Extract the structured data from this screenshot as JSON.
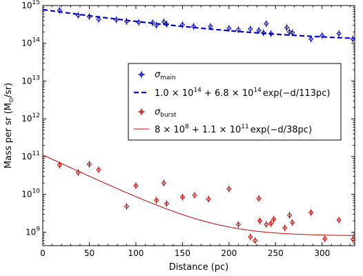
{
  "chart_data": {
    "type": "scatter",
    "xlabel": "Distance (pc)",
    "ylabel": "Mass per sr (M",
    "ylabel_sub": "⊙",
    "ylabel_end": "/sr)",
    "xlim": [
      0,
      335
    ],
    "ylim": [
      440000000.0,
      1000000000000000.0
    ],
    "y_scale": "log",
    "x_ticks": [
      0,
      50,
      100,
      150,
      200,
      250,
      300
    ],
    "y_ticks": [
      1000000000.0,
      10000000000.0,
      100000000000.0,
      1000000000000.0,
      10000000000000.0,
      100000000000000.0,
      1000000000000000.0
    ],
    "y_tick_labels": [
      {
        "base": "10",
        "exp": "9"
      },
      {
        "base": "10",
        "exp": "10"
      },
      {
        "base": "10",
        "exp": "11"
      },
      {
        "base": "10",
        "exp": "12"
      },
      {
        "base": "10",
        "exp": "13"
      },
      {
        "base": "10",
        "exp": "14"
      },
      {
        "base": "10",
        "exp": "15"
      }
    ],
    "legend_position": "center-right",
    "series": [
      {
        "name": "σ",
        "name_sub": "main",
        "color": "#0000cc",
        "marker": "diamond",
        "points": [
          [
            18,
            750000000000000.0
          ],
          [
            38,
            550000000000000.0
          ],
          [
            50,
            510000000000000.0
          ],
          [
            60,
            430000000000000.0
          ],
          [
            79,
            420000000000000.0
          ],
          [
            90,
            380000000000000.0
          ],
          [
            103,
            360000000000000.0
          ],
          [
            118,
            350000000000000.0
          ],
          [
            122,
            300000000000000.0
          ],
          [
            130,
            370000000000000.0
          ],
          [
            133,
            320000000000000.0
          ],
          [
            150,
            310000000000000.0
          ],
          [
            162,
            280000000000000.0
          ],
          [
            180,
            280000000000000.0
          ],
          [
            200,
            250000000000000.0
          ],
          [
            210,
            230000000000000.0
          ],
          [
            223,
            240000000000000.0
          ],
          [
            232,
            220000000000000.0
          ],
          [
            237,
            190000000000000.0
          ],
          [
            240,
            330000000000000.0
          ],
          [
            245,
            180000000000000.0
          ],
          [
            262,
            260000000000000.0
          ],
          [
            265,
            200000000000000.0
          ],
          [
            268,
            190000000000000.0
          ],
          [
            288,
            130000000000000.0
          ],
          [
            300,
            160000000000000.0
          ],
          [
            318,
            180000000000000.0
          ],
          [
            333,
            130000000000000.0
          ]
        ],
        "fit_label": "1.0 × 10^14 + 6.8 × 10^14 exp(−d/113pc)",
        "fit_parts": [
          "1.0 × 10",
          "14",
          " + 6.8 × 10",
          "14",
          "exp(−d/113pc)"
        ],
        "fit": {
          "a": 100000000000000.0,
          "b": 680000000000000.0,
          "scale": 113
        },
        "fit_style": "dashed"
      },
      {
        "name": "σ",
        "name_sub": "burst",
        "color": "#cc0000",
        "marker": "diamond",
        "points": [
          [
            18,
            60000000000.0
          ],
          [
            38,
            38000000000.0
          ],
          [
            50,
            63000000000.0
          ],
          [
            60,
            45000000000.0
          ],
          [
            90,
            4800000000.0
          ],
          [
            100,
            17000000000.0
          ],
          [
            122,
            7000000000.0
          ],
          [
            130,
            20000000000.0
          ],
          [
            133,
            5700000000.0
          ],
          [
            150,
            8500000000.0
          ],
          [
            163,
            9500000000.0
          ],
          [
            178,
            7500000000.0
          ],
          [
            200,
            14000000000.0
          ],
          [
            210,
            1600000000.0
          ],
          [
            223,
            750000000.0
          ],
          [
            228,
            600000000.0
          ],
          [
            232,
            7800000000.0
          ],
          [
            233,
            2000000000.0
          ],
          [
            240,
            1600000000.0
          ],
          [
            245,
            1700000000.0
          ],
          [
            248,
            2200000000.0
          ],
          [
            260,
            1300000000.0
          ],
          [
            265,
            2800000000.0
          ],
          [
            268,
            1800000000.0
          ],
          [
            288,
            3300000000.0
          ],
          [
            303,
            670000000.0
          ],
          [
            318,
            2100000000.0
          ],
          [
            333,
            650000000.0
          ]
        ],
        "fit_label": "8 × 10^8 + 1.1 × 10^11 exp(−d/38pc)",
        "fit_parts": [
          "8 × 10",
          "8",
          " + 1.1 × 10",
          "11",
          "exp(−d/38pc)"
        ],
        "fit": {
          "a": 800000000.0,
          "b": 110000000000.0,
          "scale": 38
        },
        "fit_style": "solid"
      }
    ]
  }
}
